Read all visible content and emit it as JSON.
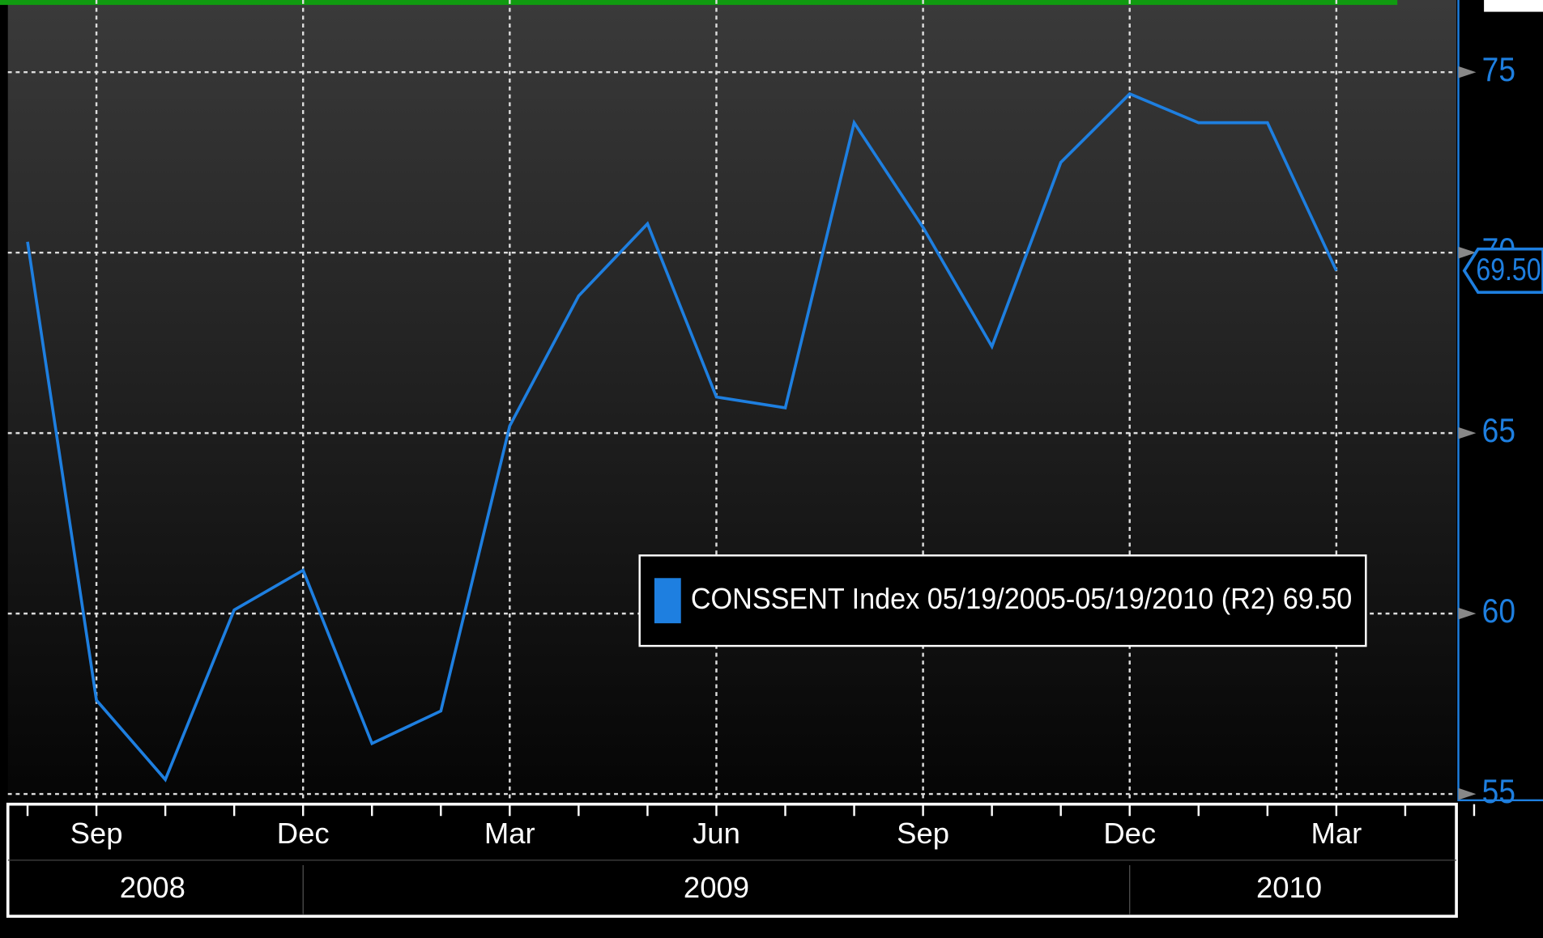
{
  "chart_data": {
    "type": "line",
    "categories": [
      null,
      "Sep",
      null,
      null,
      "Dec",
      null,
      null,
      "Mar",
      null,
      null,
      "Jun",
      null,
      null,
      "Sep",
      null,
      null,
      "Dec",
      null,
      null,
      "Mar"
    ],
    "years": [
      "2008",
      "2009",
      "2010"
    ],
    "series": [
      {
        "name": "CONSSENT Index 05/19/2005-05/19/2010 (R2) 69.50",
        "color": "#1e7fe0",
        "values": [
          70.3,
          57.6,
          55.4,
          60.1,
          61.2,
          56.4,
          57.3,
          65.2,
          68.8,
          70.8,
          66.0,
          65.7,
          73.6,
          70.7,
          67.4,
          72.5,
          74.4,
          73.6,
          73.6,
          69.5
        ],
        "value_labels": [
          null,
          null,
          null,
          null,
          null,
          null,
          null,
          null,
          null,
          null,
          null,
          null,
          null,
          null,
          null,
          null,
          null,
          null,
          null,
          "69.50"
        ]
      }
    ],
    "ylim": [
      54.8,
      77
    ],
    "yticks": [
      55,
      60,
      65,
      70,
      75
    ],
    "grid": true
  }
}
